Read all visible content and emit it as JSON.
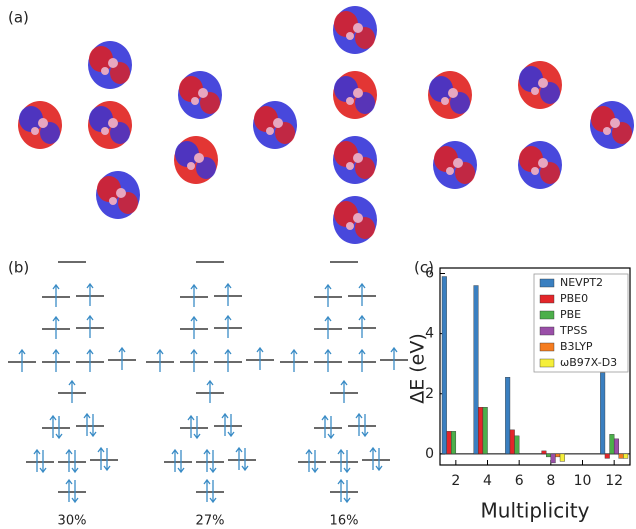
{
  "panels": {
    "a": "(a)",
    "b": "(b)",
    "c": "(c)"
  },
  "diagram_labels": [
    "30%",
    "27%",
    "16%"
  ],
  "chart_data": {
    "type": "bar",
    "xlabel": "Multiplicity",
    "ylabel": "ΔE (eV)",
    "categories": [
      "2",
      "4",
      "6",
      "8",
      "10",
      "12"
    ],
    "series": [
      {
        "name": "NEVPT2",
        "color": "#3a7fc0",
        "values": [
          5.9,
          5.6,
          2.55,
          0,
          0,
          2.7
        ]
      },
      {
        "name": "PBE0",
        "color": "#e3262a",
        "values": [
          0.75,
          1.55,
          0.8,
          0.1,
          0,
          -0.15
        ]
      },
      {
        "name": "PBE",
        "color": "#4caf4a",
        "values": [
          0.75,
          1.55,
          0.6,
          -0.1,
          0,
          0.65
        ]
      },
      {
        "name": "TPSS",
        "color": "#9a4fa8",
        "values": [
          0,
          0,
          0,
          -0.3,
          0,
          0.5
        ]
      },
      {
        "name": "B3LYP",
        "color": "#f57c1f",
        "values": [
          0,
          0,
          0,
          -0.1,
          0,
          -0.15
        ]
      },
      {
        "name": "ωB97X-D3",
        "color": "#f5ef3a",
        "values": [
          0,
          0,
          0,
          -0.25,
          0,
          -0.15
        ]
      }
    ],
    "ylim": [
      -0.37,
      6.05
    ],
    "yticks": [
      0,
      2,
      4,
      6
    ]
  }
}
